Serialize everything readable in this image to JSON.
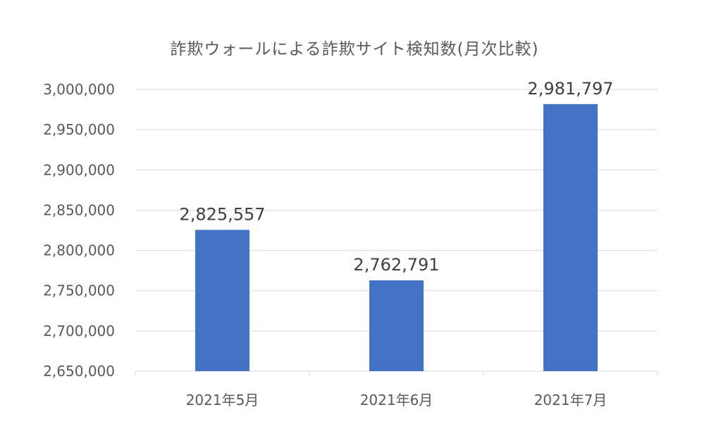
{
  "chart_data": {
    "type": "bar",
    "title": "詐欺ウォールによる詐欺サイト検知数(月次比較)",
    "xlabel": "",
    "ylabel": "",
    "categories": [
      "2021年5月",
      "2021年6月",
      "2021年7月"
    ],
    "values": [
      2825557,
      2762791,
      2981797
    ],
    "data_labels": [
      "2,825,557",
      "2,762,791",
      "2,981,797"
    ],
    "ylim": [
      2650000,
      3000000
    ],
    "yticks": [
      2650000,
      2700000,
      2750000,
      2800000,
      2850000,
      2900000,
      2950000,
      3000000
    ],
    "ytick_labels": [
      "2,650,000",
      "2,700,000",
      "2,750,000",
      "2,800,000",
      "2,850,000",
      "2,900,000",
      "2,950,000",
      "3,000,000"
    ],
    "grid": true,
    "legend": "none",
    "bar_color": "#4472C4",
    "grid_color": "#D9D9D9"
  }
}
